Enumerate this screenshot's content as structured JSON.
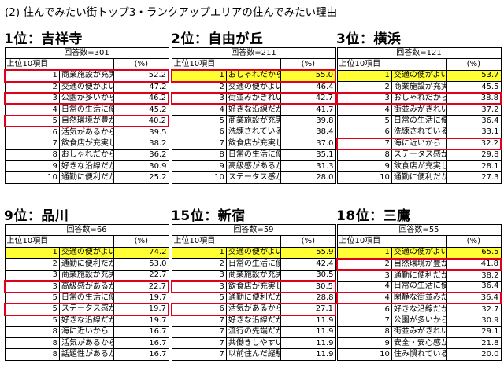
{
  "title": "(2) 住んでみたい街トップ3・ランクアップエリアの住んでみたい理由",
  "column_header": "上位10項目",
  "pct_header": "(%)",
  "blocks": [
    {
      "heading": "1位：吉祥寺",
      "respondents": "回答数=301",
      "rows": [
        {
          "n": "1",
          "label": "商業施設が充実しているから",
          "pct": "52.2",
          "yellow": false,
          "boxed": true
        },
        {
          "n": "2",
          "label": "交通の便がよいから",
          "pct": "47.2",
          "yellow": false,
          "boxed": false
        },
        {
          "n": "3",
          "label": "公園が多いから",
          "pct": "46.2",
          "yellow": false,
          "boxed": true
        },
        {
          "n": "4",
          "label": "日常の生活に便利だから",
          "pct": "45.2",
          "yellow": false,
          "boxed": false
        },
        {
          "n": "5",
          "label": "自然環境が豊かだから",
          "pct": "40.2",
          "yellow": false,
          "boxed": true
        },
        {
          "n": "6",
          "label": "活気があるから",
          "pct": "39.5",
          "yellow": false,
          "boxed": false
        },
        {
          "n": "7",
          "label": "飲食店が充実しているから",
          "pct": "38.2",
          "yellow": false,
          "boxed": false
        },
        {
          "n": "8",
          "label": "おしゃれだから",
          "pct": "36.2",
          "yellow": false,
          "boxed": false
        },
        {
          "n": "9",
          "label": "好きな沿線だから",
          "pct": "30.9",
          "yellow": false,
          "boxed": false
        },
        {
          "n": "10",
          "label": "通勤に便利だから",
          "pct": "25.2",
          "yellow": false,
          "boxed": false
        }
      ]
    },
    {
      "heading": "2位：自由が丘",
      "respondents": "回答数=211",
      "rows": [
        {
          "n": "1",
          "label": "おしゃれだから",
          "pct": "55.0",
          "yellow": true,
          "boxed": true
        },
        {
          "n": "2",
          "label": "交通の便がよいから",
          "pct": "46.4",
          "yellow": false,
          "boxed": false
        },
        {
          "n": "3",
          "label": "街並みがきれいだから",
          "pct": "42.7",
          "yellow": false,
          "boxed": true
        },
        {
          "n": "4",
          "label": "好きな沿線だから",
          "pct": "41.7",
          "yellow": false,
          "boxed": false
        },
        {
          "n": "5",
          "label": "商業施設が充実しているから",
          "pct": "39.8",
          "yellow": false,
          "boxed": false
        },
        {
          "n": "6",
          "label": "洗練されているから",
          "pct": "38.4",
          "yellow": false,
          "boxed": false
        },
        {
          "n": "7",
          "label": "飲食店が充実しているから",
          "pct": "37.0",
          "yellow": false,
          "boxed": false
        },
        {
          "n": "8",
          "label": "日常の生活に便利だから",
          "pct": "35.1",
          "yellow": false,
          "boxed": false
        },
        {
          "n": "9",
          "label": "高級感があるから",
          "pct": "31.3",
          "yellow": false,
          "boxed": false
        },
        {
          "n": "10",
          "label": "ステータス感があるから",
          "pct": "28.0",
          "yellow": false,
          "boxed": false
        }
      ]
    },
    {
      "heading": "3位：横浜",
      "respondents": "回答数=121",
      "rows": [
        {
          "n": "1",
          "label": "交通の便がよいから",
          "pct": "53.7",
          "yellow": true,
          "boxed": false
        },
        {
          "n": "2",
          "label": "商業施設が充実しているから",
          "pct": "45.5",
          "yellow": false,
          "boxed": false
        },
        {
          "n": "3",
          "label": "おしゃれだから",
          "pct": "38.8",
          "yellow": false,
          "boxed": true
        },
        {
          "n": "4",
          "label": "街並みがきれいだから",
          "pct": "37.2",
          "yellow": false,
          "boxed": false
        },
        {
          "n": "5",
          "label": "日常の生活に便利だから",
          "pct": "36.4",
          "yellow": false,
          "boxed": false
        },
        {
          "n": "6",
          "label": "洗練されているから",
          "pct": "33.1",
          "yellow": false,
          "boxed": false
        },
        {
          "n": "7",
          "label": "海に近いから",
          "pct": "32.2",
          "yellow": false,
          "boxed": true
        },
        {
          "n": "8",
          "label": "ステータス感があるから",
          "pct": "29.8",
          "yellow": false,
          "boxed": false
        },
        {
          "n": "9",
          "label": "飲食店が充実しているから",
          "pct": "28.1",
          "yellow": false,
          "boxed": false
        },
        {
          "n": "10",
          "label": "通勤に便利だから",
          "pct": "27.3",
          "yellow": false,
          "boxed": false
        }
      ]
    },
    {
      "heading": "9位：品川",
      "respondents": "回答数=66",
      "rows": [
        {
          "n": "1",
          "label": "交通の便がよいから",
          "pct": "74.2",
          "yellow": true,
          "boxed": false
        },
        {
          "n": "2",
          "label": "通勤に便利だから",
          "pct": "53.0",
          "yellow": false,
          "boxed": false
        },
        {
          "n": "3",
          "label": "商業施設が充実しているから",
          "pct": "22.7",
          "yellow": false,
          "boxed": false
        },
        {
          "n": "3",
          "label": "高級感があるから",
          "pct": "22.7",
          "yellow": false,
          "boxed": true
        },
        {
          "n": "5",
          "label": "日常の生活に便利だから",
          "pct": "19.7",
          "yellow": false,
          "boxed": false
        },
        {
          "n": "5",
          "label": "ステータス感があるから",
          "pct": "19.7",
          "yellow": false,
          "boxed": true
        },
        {
          "n": "5",
          "label": "好きな沿線だから",
          "pct": "19.7",
          "yellow": false,
          "boxed": false
        },
        {
          "n": "8",
          "label": "海に近いから",
          "pct": "16.7",
          "yellow": false,
          "boxed": false
        },
        {
          "n": "8",
          "label": "活気があるから",
          "pct": "16.7",
          "yellow": false,
          "boxed": false
        },
        {
          "n": "8",
          "label": "話題性があるから",
          "pct": "16.7",
          "yellow": false,
          "boxed": false
        }
      ]
    },
    {
      "heading": "15位：新宿",
      "respondents": "回答数=59",
      "rows": [
        {
          "n": "1",
          "label": "交通の便がよいから",
          "pct": "55.9",
          "yellow": true,
          "boxed": false
        },
        {
          "n": "2",
          "label": "日常の生活に便利だから",
          "pct": "42.4",
          "yellow": false,
          "boxed": false
        },
        {
          "n": "3",
          "label": "商業施設が充実しているから",
          "pct": "30.5",
          "yellow": false,
          "boxed": false
        },
        {
          "n": "3",
          "label": "飲食店が充実しているから",
          "pct": "30.5",
          "yellow": false,
          "boxed": true
        },
        {
          "n": "5",
          "label": "通勤に便利だから",
          "pct": "28.8",
          "yellow": false,
          "boxed": false
        },
        {
          "n": "6",
          "label": "活気があるから",
          "pct": "27.1",
          "yellow": false,
          "boxed": true
        },
        {
          "n": "7",
          "label": "好きな沿線だから",
          "pct": "11.9",
          "yellow": false,
          "boxed": false
        },
        {
          "n": "7",
          "label": "流行の先端だから",
          "pct": "11.9",
          "yellow": false,
          "boxed": false
        },
        {
          "n": "7",
          "label": "共働きしやすいから",
          "pct": "11.9",
          "yellow": false,
          "boxed": false
        },
        {
          "n": "7",
          "label": "以前住んだ経験があるから",
          "pct": "11.9",
          "yellow": false,
          "boxed": false
        }
      ]
    },
    {
      "heading": "18位：三鷹",
      "respondents": "回答数=55",
      "rows": [
        {
          "n": "1",
          "label": "交通の便がよいから",
          "pct": "65.5",
          "yellow": true,
          "boxed": false
        },
        {
          "n": "2",
          "label": "自然環境が豊かだから",
          "pct": "41.8",
          "yellow": false,
          "boxed": true
        },
        {
          "n": "3",
          "label": "通勤に便利だから",
          "pct": "38.2",
          "yellow": false,
          "boxed": false
        },
        {
          "n": "4",
          "label": "日常の生活に便利だから",
          "pct": "36.4",
          "yellow": false,
          "boxed": false
        },
        {
          "n": "4",
          "label": "閑静な街並みだから",
          "pct": "36.4",
          "yellow": false,
          "boxed": true
        },
        {
          "n": "6",
          "label": "好きな沿線だから",
          "pct": "32.7",
          "yellow": false,
          "boxed": false
        },
        {
          "n": "7",
          "label": "公園が多いから",
          "pct": "30.9",
          "yellow": false,
          "boxed": false
        },
        {
          "n": "8",
          "label": "街並みがきれいだから",
          "pct": "29.1",
          "yellow": false,
          "boxed": false
        },
        {
          "n": "9",
          "label": "安全・安心感があるから",
          "pct": "21.8",
          "yellow": false,
          "boxed": false
        },
        {
          "n": "10",
          "label": "住み慣れているから",
          "pct": "20.0",
          "yellow": false,
          "boxed": false
        }
      ]
    }
  ]
}
